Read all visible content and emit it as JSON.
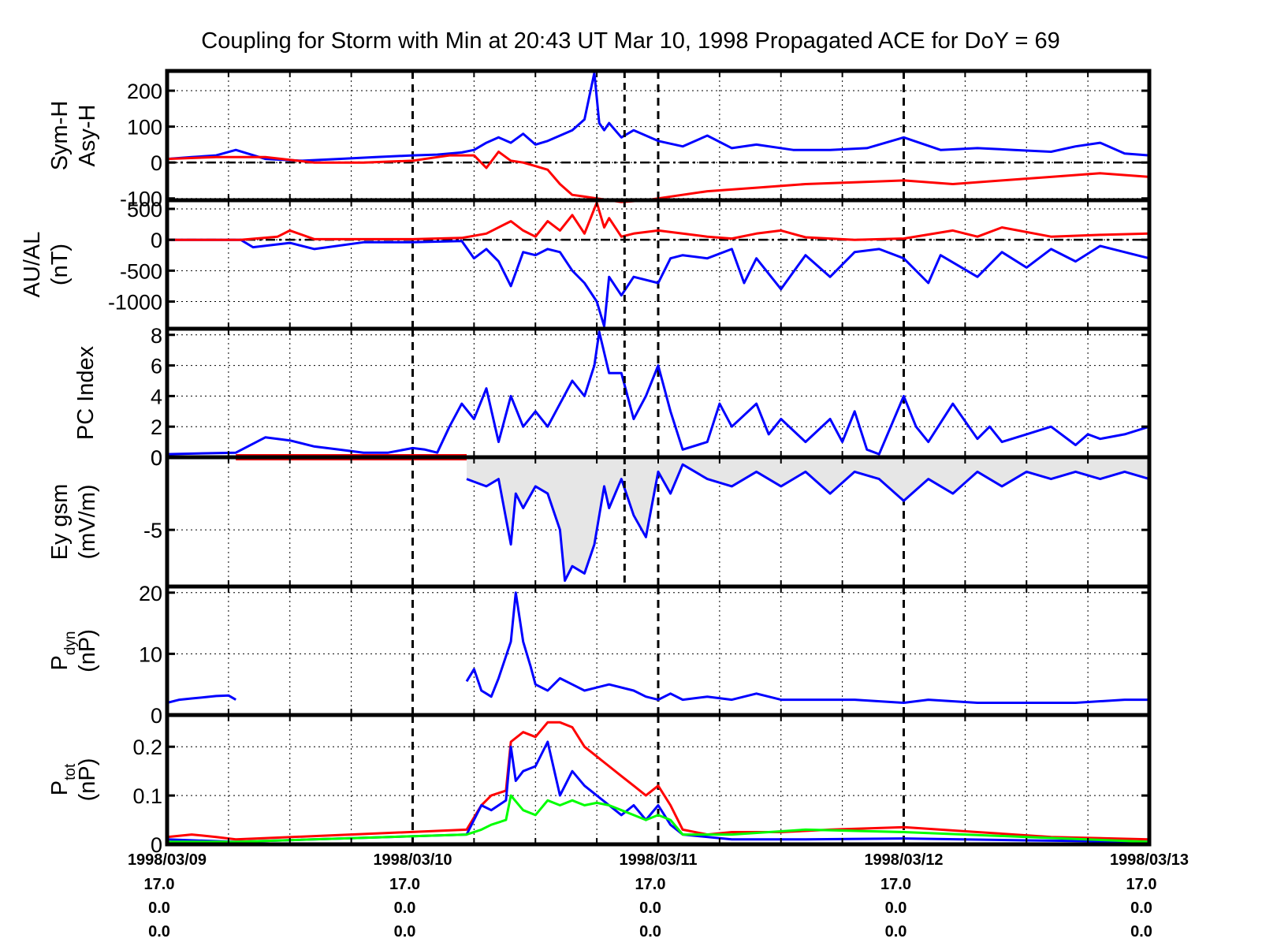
{
  "chart_data": {
    "type": "line",
    "title": "Coupling for Storm with Min at 20:43 UT Mar 10, 1998  Propagated ACE for DoY = 69",
    "x_unit": "days from 1998/03/09",
    "x_range": [
      0,
      4
    ],
    "x_ticks": [
      {
        "date": "1998/03/09",
        "rows": [
          "17.0",
          "0.0",
          "0.0"
        ]
      },
      {
        "date": "1998/03/10",
        "rows": [
          "17.0",
          "0.0",
          "0.0"
        ]
      },
      {
        "date": "1998/03/11",
        "rows": [
          "17.0",
          "0.0",
          "0.0"
        ]
      },
      {
        "date": "1998/03/12",
        "rows": [
          "17.0",
          "0.0",
          "0.0"
        ]
      },
      {
        "date": "1998/03/13",
        "rows": [
          "17.0",
          "0.0",
          "0.0"
        ]
      }
    ],
    "storm_min_marker": "1998/03/10 20:43",
    "storm_min_x": 1.863,
    "panels": [
      {
        "id": "symh-asyh",
        "ylabel": [
          "Sym-H",
          "Asy-H"
        ],
        "ylim": [
          -105,
          255
        ],
        "yticks": [
          200,
          100,
          0,
          -100
        ],
        "yticklabels": [
          "200",
          "100",
          "0",
          "-100"
        ],
        "zero_line": true,
        "series": [
          {
            "color": "#0000ff",
            "x": [
              0,
              0.1,
              0.2,
              0.28,
              0.4,
              0.55,
              0.7,
              0.85,
              1.0,
              1.1,
              1.2,
              1.25,
              1.3,
              1.35,
              1.4,
              1.45,
              1.5,
              1.55,
              1.6,
              1.65,
              1.7,
              1.74,
              1.76,
              1.78,
              1.8,
              1.85,
              1.9,
              2.0,
              2.1,
              2.2,
              2.3,
              2.4,
              2.55,
              2.7,
              2.85,
              3.0,
              3.15,
              3.3,
              3.45,
              3.6,
              3.7,
              3.8,
              3.9,
              4.0
            ],
            "y": [
              10,
              15,
              20,
              35,
              10,
              5,
              10,
              15,
              20,
              22,
              28,
              35,
              55,
              70,
              55,
              80,
              50,
              60,
              75,
              90,
              120,
              250,
              110,
              90,
              110,
              70,
              90,
              60,
              45,
              75,
              40,
              50,
              35,
              35,
              40,
              70,
              35,
              40,
              35,
              30,
              45,
              55,
              25,
              20
            ]
          },
          {
            "color": "#ff0000",
            "x": [
              0,
              0.2,
              0.4,
              0.6,
              0.8,
              1.0,
              1.1,
              1.15,
              1.25,
              1.3,
              1.35,
              1.4,
              1.45,
              1.5,
              1.55,
              1.6,
              1.65,
              1.7,
              1.75,
              1.85,
              1.95,
              2.0,
              2.2,
              2.4,
              2.6,
              2.8,
              3.0,
              3.2,
              3.4,
              3.6,
              3.8,
              4.0
            ],
            "y": [
              10,
              15,
              15,
              0,
              0,
              5,
              15,
              20,
              20,
              -15,
              30,
              5,
              0,
              -10,
              -20,
              -60,
              -90,
              -95,
              -100,
              -110,
              -105,
              -100,
              -80,
              -70,
              -60,
              -55,
              -50,
              -60,
              -50,
              -40,
              -30,
              -40
            ]
          }
        ]
      },
      {
        "id": "au-al",
        "ylabel": [
          "AU/AL",
          "(nT)"
        ],
        "ylim": [
          -1440,
          640
        ],
        "yticks": [
          500,
          0,
          -500,
          -1000
        ],
        "yticklabels": [
          "500",
          "0",
          "-500",
          "-1000"
        ],
        "zero_line": true,
        "series": [
          {
            "color": "#0000ff",
            "x": [
              0,
              0.3,
              0.35,
              0.5,
              0.6,
              0.8,
              1.0,
              1.2,
              1.25,
              1.3,
              1.35,
              1.4,
              1.45,
              1.5,
              1.55,
              1.6,
              1.65,
              1.7,
              1.75,
              1.78,
              1.8,
              1.85,
              1.9,
              2.0,
              2.05,
              2.1,
              2.2,
              2.3,
              2.35,
              2.4,
              2.5,
              2.6,
              2.7,
              2.8,
              2.9,
              3.0,
              3.1,
              3.15,
              3.3,
              3.4,
              3.5,
              3.6,
              3.7,
              3.8,
              3.9,
              4.0
            ],
            "y": [
              0,
              0,
              -120,
              -50,
              -150,
              -40,
              -40,
              -20,
              -300,
              -150,
              -350,
              -750,
              -200,
              -250,
              -150,
              -200,
              -500,
              -700,
              -1000,
              -1400,
              -600,
              -900,
              -600,
              -700,
              -300,
              -250,
              -300,
              -150,
              -700,
              -300,
              -800,
              -250,
              -600,
              -200,
              -150,
              -300,
              -700,
              -250,
              -600,
              -200,
              -450,
              -150,
              -350,
              -100,
              -200,
              -300
            ]
          },
          {
            "color": "#ff0000",
            "x": [
              0,
              0.3,
              0.45,
              0.5,
              0.6,
              0.8,
              1.0,
              1.2,
              1.3,
              1.4,
              1.45,
              1.5,
              1.55,
              1.6,
              1.65,
              1.7,
              1.75,
              1.78,
              1.8,
              1.85,
              1.9,
              2.0,
              2.1,
              2.2,
              2.3,
              2.4,
              2.5,
              2.6,
              2.8,
              3.0,
              3.2,
              3.3,
              3.4,
              3.6,
              3.8,
              4.0
            ],
            "y": [
              0,
              0,
              50,
              150,
              10,
              10,
              10,
              30,
              100,
              300,
              150,
              50,
              300,
              150,
              400,
              100,
              600,
              200,
              350,
              50,
              100,
              150,
              100,
              50,
              20,
              100,
              150,
              40,
              0,
              20,
              150,
              50,
              200,
              50,
              80,
              100
            ]
          }
        ]
      },
      {
        "id": "pc-index",
        "ylabel": [
          "PC Index"
        ],
        "ylim": [
          0,
          8.4
        ],
        "yticks": [
          8,
          6,
          4,
          2,
          0
        ],
        "yticklabels": [
          "8",
          "6",
          "4",
          "2",
          "0"
        ],
        "zero_line": false,
        "series": [
          {
            "color": "#0000ff",
            "x": [
              0,
              0.28,
              0.4,
              0.5,
              0.6,
              0.7,
              0.8,
              0.9,
              1.0,
              1.05,
              1.1,
              1.15,
              1.2,
              1.25,
              1.3,
              1.35,
              1.4,
              1.45,
              1.5,
              1.55,
              1.6,
              1.65,
              1.7,
              1.74,
              1.76,
              1.8,
              1.85,
              1.9,
              1.95,
              2.0,
              2.05,
              2.1,
              2.2,
              2.25,
              2.3,
              2.4,
              2.45,
              2.5,
              2.6,
              2.7,
              2.75,
              2.8,
              2.85,
              2.9,
              3.0,
              3.05,
              3.1,
              3.2,
              3.3,
              3.35,
              3.4,
              3.5,
              3.6,
              3.7,
              3.75,
              3.8,
              3.9,
              4.0
            ],
            "y": [
              0.2,
              0.3,
              1.3,
              1.1,
              0.7,
              0.5,
              0.3,
              0.3,
              0.6,
              0.5,
              0.3,
              2.0,
              3.5,
              2.5,
              4.5,
              1.0,
              4.0,
              2.0,
              3.0,
              2.0,
              3.5,
              5.0,
              4.0,
              6.0,
              8.2,
              5.5,
              5.5,
              2.5,
              4.0,
              6.0,
              3.0,
              0.5,
              1.0,
              3.5,
              2.0,
              3.5,
              1.5,
              2.5,
              1.0,
              2.5,
              1.0,
              3.0,
              0.5,
              0.2,
              4.0,
              2.0,
              1.0,
              3.5,
              1.2,
              2.0,
              1.0,
              1.5,
              2.0,
              0.8,
              1.5,
              1.2,
              1.5,
              2.0
            ]
          }
        ]
      },
      {
        "id": "ey-gsm",
        "ylabel": [
          "Ey gsm",
          "(mV/m)"
        ],
        "ylim": [
          -8.9,
          0
        ],
        "yticks": [
          0,
          -5
        ],
        "yticklabels": [
          "0",
          "-5"
        ],
        "zero_line": false,
        "fill": "#e6e6e6",
        "series": [
          {
            "color": "#ff0000",
            "x": [
              0.28,
              1.22
            ],
            "y": [
              0,
              0
            ]
          },
          {
            "color": "#0000ff",
            "x": [
              1.22,
              1.3,
              1.35,
              1.4,
              1.42,
              1.45,
              1.5,
              1.55,
              1.6,
              1.62,
              1.65,
              1.7,
              1.74,
              1.78,
              1.8,
              1.85,
              1.9,
              1.95,
              2.0,
              2.05,
              2.1,
              2.2,
              2.3,
              2.4,
              2.5,
              2.6,
              2.7,
              2.8,
              2.9,
              3.0,
              3.1,
              3.2,
              3.3,
              3.4,
              3.5,
              3.6,
              3.7,
              3.8,
              3.9,
              4.0
            ],
            "y": [
              -1.5,
              -2.0,
              -1.5,
              -6.0,
              -2.5,
              -3.5,
              -2.0,
              -2.5,
              -5.0,
              -8.5,
              -7.5,
              -8.0,
              -6.0,
              -2.0,
              -3.5,
              -1.5,
              -4.0,
              -5.5,
              -1.0,
              -2.5,
              -0.5,
              -1.5,
              -2.0,
              -1.0,
              -2.0,
              -1.0,
              -2.5,
              -1.0,
              -1.5,
              -3.0,
              -1.5,
              -2.5,
              -1.0,
              -2.0,
              -1.0,
              -1.5,
              -1.0,
              -1.5,
              -1.0,
              -1.5
            ]
          }
        ]
      },
      {
        "id": "p-dyn",
        "ylabel": [
          "P",
          "dyn",
          "(nP)"
        ],
        "ylim": [
          0,
          21
        ],
        "yticks": [
          20,
          10,
          0
        ],
        "yticklabels": [
          "20",
          "10",
          "0"
        ],
        "zero_line": false,
        "series": [
          {
            "color": "#0000ff",
            "x": [
              0,
              0.05,
              0.1,
              0.15,
              0.2,
              0.25,
              0.28
            ],
            "y": [
              2,
              2.5,
              2.7,
              2.9,
              3.1,
              3.2,
              2.5
            ]
          },
          {
            "color": "#0000ff",
            "x": [
              1.22,
              1.25,
              1.28,
              1.3,
              1.32,
              1.35,
              1.4,
              1.42,
              1.45,
              1.48,
              1.5,
              1.55,
              1.6,
              1.65,
              1.7,
              1.8,
              1.9,
              1.95,
              2.0,
              2.05,
              2.1,
              2.2,
              2.3,
              2.4,
              2.5,
              2.6,
              2.8,
              3.0,
              3.1,
              3.3,
              3.5,
              3.7,
              3.9,
              4.0
            ],
            "y": [
              5.5,
              7.5,
              4.0,
              3.5,
              3.0,
              6.0,
              12.0,
              20.0,
              12.0,
              8.0,
              5.0,
              4.0,
              6.0,
              5.0,
              4.0,
              5.0,
              4.0,
              3.0,
              2.5,
              3.5,
              2.5,
              3.0,
              2.5,
              3.5,
              2.5,
              2.5,
              2.5,
              2.0,
              2.5,
              2.0,
              2.0,
              2.0,
              2.5,
              2.5
            ]
          }
        ]
      },
      {
        "id": "p-tot",
        "ylabel": [
          "P",
          "tot",
          "(nP)"
        ],
        "ylim": [
          0,
          0.265
        ],
        "yticks": [
          0.2,
          0.1,
          0
        ],
        "yticklabels": [
          "0.2",
          "0.1",
          "0"
        ],
        "zero_line": false,
        "series": [
          {
            "color": "#ff0000",
            "x": [
              0,
              0.1,
              0.2,
              0.28,
              1.22,
              1.28,
              1.32,
              1.38,
              1.4,
              1.45,
              1.5,
              1.55,
              1.6,
              1.65,
              1.7,
              1.75,
              1.8,
              1.85,
              1.9,
              1.95,
              2.0,
              2.05,
              2.1,
              2.2,
              2.3,
              2.5,
              2.7,
              3.0,
              3.3,
              3.6,
              4.0
            ],
            "y": [
              0.015,
              0.02,
              0.015,
              0.01,
              0.03,
              0.08,
              0.1,
              0.11,
              0.21,
              0.23,
              0.22,
              0.25,
              0.25,
              0.24,
              0.2,
              0.18,
              0.16,
              0.14,
              0.12,
              0.1,
              0.12,
              0.08,
              0.03,
              0.02,
              0.025,
              0.025,
              0.03,
              0.035,
              0.025,
              0.015,
              0.01
            ]
          },
          {
            "color": "#0000ff",
            "x": [
              0,
              0.28,
              1.22,
              1.28,
              1.32,
              1.38,
              1.4,
              1.42,
              1.45,
              1.5,
              1.55,
              1.6,
              1.65,
              1.7,
              1.75,
              1.8,
              1.85,
              1.9,
              1.95,
              2.0,
              2.05,
              2.1,
              2.3,
              2.6,
              3.0,
              3.5,
              4.0
            ],
            "y": [
              0.01,
              0.005,
              0.02,
              0.08,
              0.07,
              0.09,
              0.2,
              0.13,
              0.15,
              0.16,
              0.21,
              0.1,
              0.15,
              0.12,
              0.1,
              0.08,
              0.06,
              0.08,
              0.05,
              0.08,
              0.04,
              0.02,
              0.01,
              0.01,
              0.012,
              0.008,
              0.005
            ]
          },
          {
            "color": "#00ff00",
            "x": [
              0,
              0.28,
              1.22,
              1.28,
              1.32,
              1.38,
              1.4,
              1.45,
              1.5,
              1.55,
              1.6,
              1.65,
              1.7,
              1.75,
              1.8,
              1.85,
              1.9,
              1.95,
              2.0,
              2.05,
              2.1,
              2.3,
              2.6,
              3.0,
              3.5,
              4.0
            ],
            "y": [
              0.005,
              0.005,
              0.02,
              0.03,
              0.04,
              0.05,
              0.1,
              0.07,
              0.06,
              0.09,
              0.08,
              0.09,
              0.08,
              0.085,
              0.08,
              0.07,
              0.06,
              0.05,
              0.06,
              0.05,
              0.02,
              0.02,
              0.03,
              0.025,
              0.015,
              0.005
            ]
          }
        ]
      }
    ]
  }
}
